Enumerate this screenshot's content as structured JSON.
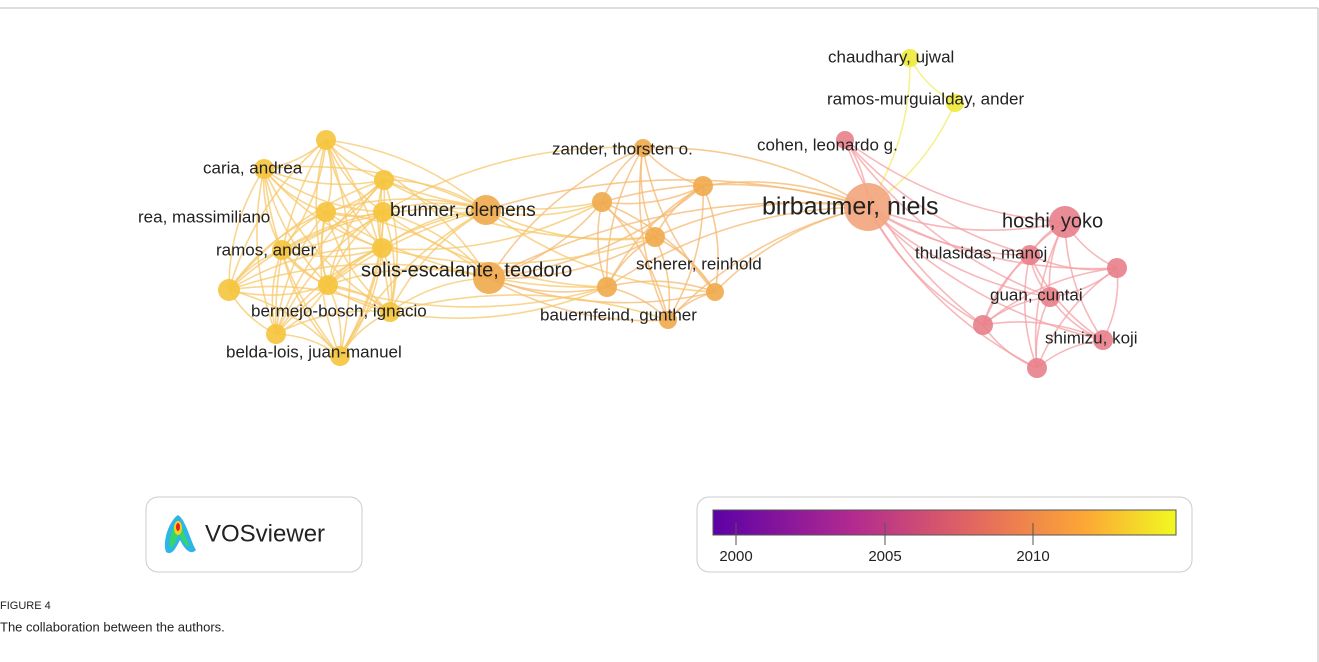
{
  "nodes": [
    {
      "label": "birbaumer, niels"
    },
    {
      "label": "chaudhary, ujwal"
    },
    {
      "label": "ramos-murguialday, ander"
    },
    {
      "label": "cohen, leonardo g."
    },
    {
      "label": "zander, thorsten o."
    },
    {
      "label": "brunner, clemens"
    },
    {
      "label": "solis-escalante, teodoro"
    },
    {
      "label": "scherer, reinhold"
    },
    {
      "label": "bauernfeind, gunther"
    },
    {
      "label": "caria, andrea"
    },
    {
      "label": "rea, massimiliano"
    },
    {
      "label": "ramos, ander"
    },
    {
      "label": "bermejo-bosch, ignacio"
    },
    {
      "label": "belda-lois, juan-manuel"
    },
    {
      "label": "hoshi, yoko"
    },
    {
      "label": "thulasidas, manoj"
    },
    {
      "label": "guan, cuntai"
    },
    {
      "label": "shimizu, koji"
    }
  ],
  "colorbar": {
    "ticks": [
      2000,
      2005,
      2010
    ]
  },
  "logo": {
    "text": "VOSviewer"
  },
  "figure": {
    "label": "FIGURE 4",
    "caption": "The collaboration between the authors."
  }
}
